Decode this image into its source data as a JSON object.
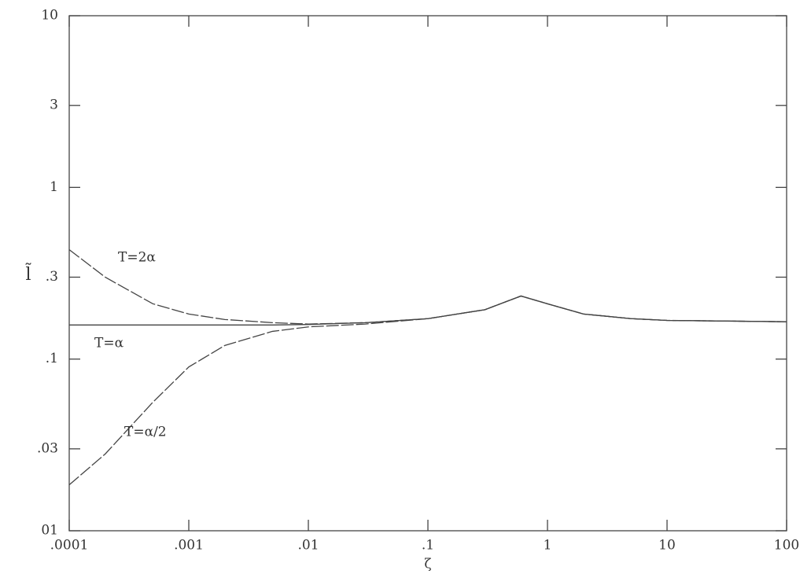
{
  "chart_data": {
    "type": "line",
    "log_x": true,
    "log_y": true,
    "x_label": "ζ",
    "y_label": "l̃",
    "x": [
      0.0001,
      0.0002,
      0.0005,
      0.001,
      0.002,
      0.005,
      0.01,
      0.03,
      0.1,
      0.3,
      0.6,
      1,
      2,
      5,
      10,
      100
    ],
    "series": [
      {
        "name": "T=2α",
        "color": "#444444",
        "values": [
          0.434,
          0.3,
          0.21,
          0.183,
          0.17,
          0.163,
          0.16,
          0.163,
          0.172,
          0.194,
          0.233,
          0.21,
          0.183,
          0.172,
          0.168,
          0.165
        ]
      },
      {
        "name": "T=α",
        "color": "#444444",
        "values": [
          0.158,
          0.158,
          0.158,
          0.158,
          0.158,
          0.158,
          0.159,
          0.163,
          0.172,
          0.194,
          0.233,
          0.21,
          0.183,
          0.172,
          0.168,
          0.165
        ]
      },
      {
        "name": "T=α/2",
        "color": "#444444",
        "values": [
          0.0185,
          0.028,
          0.056,
          0.09,
          0.12,
          0.145,
          0.154,
          0.16,
          0.172,
          0.194,
          0.233,
          0.21,
          0.183,
          0.172,
          0.168,
          0.165
        ]
      }
    ],
    "xlim": [
      0.0001,
      100
    ],
    "ylim": [
      0.01,
      10
    ],
    "xticks": [
      {
        "value": 0.0001,
        "label": ".0001"
      },
      {
        "value": 0.001,
        "label": ".001"
      },
      {
        "value": 0.01,
        "label": ".01"
      },
      {
        "value": 0.1,
        "label": ".1"
      },
      1,
      10,
      100
    ],
    "yticks": [
      {
        "value": 0.01,
        "label": "01"
      },
      {
        "value": 0.03,
        "label": ".03"
      },
      {
        "value": 0.1,
        "label": ".1"
      },
      {
        "value": 0.3,
        "label": ".3"
      },
      1,
      3,
      10
    ],
    "grid": false
  }
}
